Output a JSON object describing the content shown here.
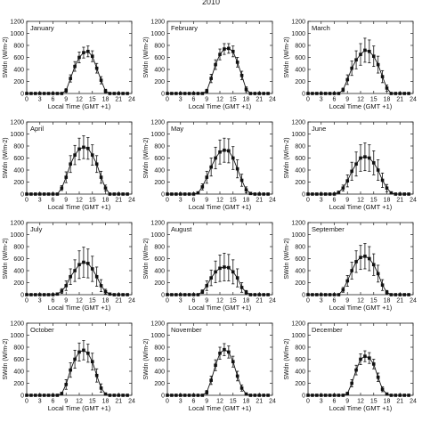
{
  "title": "2010",
  "chart_data": [
    {
      "type": "line",
      "title": "January",
      "xlabel": "Local Time (GMT +1)",
      "ylabel": "SWdn (W/m-2)",
      "xlim": [
        0,
        24
      ],
      "ylim": [
        0,
        1200
      ],
      "xticks": [
        "0",
        "3",
        "6",
        "9",
        "12",
        "15",
        "18",
        "21",
        "24"
      ],
      "yticks": [
        "0",
        "200",
        "400",
        "600",
        "800",
        "1000",
        "1200"
      ],
      "x": [
        0,
        1,
        2,
        3,
        4,
        5,
        6,
        7,
        8,
        9,
        10,
        11,
        12,
        13,
        14,
        15,
        16,
        17,
        18,
        19,
        20,
        21,
        22,
        23
      ],
      "values": [
        0,
        0,
        0,
        0,
        0,
        0,
        0,
        0,
        0,
        50,
        250,
        450,
        600,
        680,
        700,
        620,
        420,
        220,
        40,
        0,
        0,
        0,
        0,
        0
      ],
      "errors": [
        0,
        0,
        0,
        0,
        0,
        0,
        0,
        0,
        0,
        30,
        60,
        80,
        90,
        90,
        90,
        90,
        80,
        60,
        30,
        0,
        0,
        0,
        0,
        0
      ]
    },
    {
      "type": "line",
      "title": "February",
      "xlabel": "Local Time (GMT +1)",
      "ylabel": "SWdn (W/m-2)",
      "xlim": [
        0,
        24
      ],
      "ylim": [
        0,
        1200
      ],
      "xticks": [
        "0",
        "3",
        "6",
        "9",
        "12",
        "15",
        "18",
        "21",
        "24"
      ],
      "yticks": [
        "0",
        "200",
        "400",
        "600",
        "800",
        "1000",
        "1200"
      ],
      "x": [
        0,
        1,
        2,
        3,
        4,
        5,
        6,
        7,
        8,
        9,
        10,
        11,
        12,
        13,
        14,
        15,
        16,
        17,
        18,
        19,
        20,
        21,
        22,
        23
      ],
      "values": [
        0,
        0,
        0,
        0,
        0,
        0,
        0,
        0,
        0,
        40,
        250,
        480,
        650,
        740,
        750,
        700,
        520,
        300,
        70,
        0,
        0,
        0,
        0,
        0
      ],
      "errors": [
        0,
        0,
        0,
        0,
        0,
        0,
        0,
        0,
        0,
        30,
        70,
        80,
        90,
        90,
        80,
        90,
        80,
        70,
        40,
        0,
        0,
        0,
        0,
        0
      ]
    },
    {
      "type": "line",
      "title": "March",
      "xlabel": "Local Time (GMT +1)",
      "ylabel": "SWdn (W/m-2)",
      "xlim": [
        0,
        24
      ],
      "ylim": [
        0,
        1200
      ],
      "xticks": [
        "0",
        "3",
        "6",
        "9",
        "12",
        "15",
        "18",
        "21",
        "24"
      ],
      "yticks": [
        "0",
        "200",
        "400",
        "600",
        "800",
        "1000",
        "1200"
      ],
      "x": [
        0,
        1,
        2,
        3,
        4,
        5,
        6,
        7,
        8,
        9,
        10,
        11,
        12,
        13,
        14,
        15,
        16,
        17,
        18,
        19,
        20,
        21,
        22,
        23
      ],
      "values": [
        0,
        0,
        0,
        0,
        0,
        0,
        0,
        0,
        60,
        230,
        420,
        560,
        650,
        720,
        700,
        620,
        480,
        280,
        90,
        0,
        0,
        0,
        0,
        0
      ],
      "errors": [
        0,
        0,
        0,
        0,
        0,
        0,
        0,
        0,
        30,
        80,
        120,
        150,
        180,
        200,
        190,
        170,
        140,
        100,
        50,
        0,
        0,
        0,
        0,
        0
      ]
    },
    {
      "type": "line",
      "title": "April",
      "xlabel": "Local Time (GMT +1)",
      "ylabel": "SWdn (W/m-2)",
      "xlim": [
        0,
        24
      ],
      "ylim": [
        0,
        1200
      ],
      "xticks": [
        "0",
        "3",
        "6",
        "9",
        "12",
        "15",
        "18",
        "21",
        "24"
      ],
      "yticks": [
        "0",
        "200",
        "400",
        "600",
        "800",
        "1000",
        "1200"
      ],
      "x": [
        0,
        1,
        2,
        3,
        4,
        5,
        6,
        7,
        8,
        9,
        10,
        11,
        12,
        13,
        14,
        15,
        16,
        17,
        18,
        19,
        20,
        21,
        22,
        23
      ],
      "values": [
        0,
        0,
        0,
        0,
        0,
        0,
        0,
        0,
        100,
        280,
        500,
        650,
        750,
        780,
        760,
        650,
        500,
        280,
        100,
        0,
        0,
        0,
        0,
        0
      ],
      "errors": [
        0,
        0,
        0,
        0,
        0,
        0,
        0,
        0,
        40,
        90,
        140,
        160,
        180,
        190,
        180,
        170,
        140,
        100,
        50,
        0,
        0,
        0,
        0,
        0
      ]
    },
    {
      "type": "line",
      "title": "May",
      "xlabel": "Local Time (GMT +1)",
      "ylabel": "SWdn (W/m-2)",
      "xlim": [
        0,
        24
      ],
      "ylim": [
        0,
        1200
      ],
      "xticks": [
        "0",
        "3",
        "6",
        "9",
        "12",
        "15",
        "18",
        "21",
        "24"
      ],
      "yticks": [
        "0",
        "200",
        "400",
        "600",
        "800",
        "1000",
        "1200"
      ],
      "x": [
        0,
        1,
        2,
        3,
        4,
        5,
        6,
        7,
        8,
        9,
        10,
        11,
        12,
        13,
        14,
        15,
        16,
        17,
        18,
        19,
        20,
        21,
        22,
        23
      ],
      "values": [
        0,
        0,
        0,
        0,
        0,
        0,
        0,
        20,
        120,
        280,
        450,
        600,
        700,
        730,
        720,
        600,
        420,
        230,
        70,
        10,
        0,
        0,
        0,
        0
      ],
      "errors": [
        0,
        0,
        0,
        0,
        0,
        0,
        0,
        10,
        50,
        100,
        150,
        180,
        200,
        200,
        200,
        190,
        150,
        100,
        50,
        10,
        0,
        0,
        0,
        0
      ]
    },
    {
      "type": "line",
      "title": "June",
      "xlabel": "Local Time (GMT +1)",
      "ylabel": "SWdn (W/m-2)",
      "xlim": [
        0,
        24
      ],
      "ylim": [
        0,
        1200
      ],
      "xticks": [
        "0",
        "3",
        "6",
        "9",
        "12",
        "15",
        "18",
        "21",
        "24"
      ],
      "yticks": [
        "0",
        "200",
        "400",
        "600",
        "800",
        "1000",
        "1200"
      ],
      "x": [
        0,
        1,
        2,
        3,
        4,
        5,
        6,
        7,
        8,
        9,
        10,
        11,
        12,
        13,
        14,
        15,
        16,
        17,
        18,
        19,
        20,
        21,
        22,
        23
      ],
      "values": [
        0,
        0,
        0,
        0,
        0,
        0,
        0,
        30,
        100,
        220,
        380,
        500,
        600,
        620,
        600,
        520,
        400,
        230,
        100,
        20,
        0,
        0,
        0,
        0
      ],
      "errors": [
        0,
        0,
        0,
        0,
        0,
        0,
        0,
        15,
        50,
        100,
        150,
        200,
        220,
        230,
        220,
        200,
        170,
        120,
        60,
        15,
        0,
        0,
        0,
        0
      ]
    },
    {
      "type": "line",
      "title": "July",
      "xlabel": "Local Time (GMT +1)",
      "ylabel": "SWdn (W/m-2)",
      "xlim": [
        0,
        24
      ],
      "ylim": [
        0,
        1200
      ],
      "xticks": [
        "0",
        "3",
        "6",
        "9",
        "12",
        "15",
        "18",
        "21",
        "24"
      ],
      "yticks": [
        "0",
        "200",
        "400",
        "600",
        "800",
        "1000",
        "1200"
      ],
      "x": [
        0,
        1,
        2,
        3,
        4,
        5,
        6,
        7,
        8,
        9,
        10,
        11,
        12,
        13,
        14,
        15,
        16,
        17,
        18,
        19,
        20,
        21,
        22,
        23
      ],
      "values": [
        0,
        0,
        0,
        0,
        0,
        0,
        0,
        10,
        60,
        150,
        300,
        400,
        500,
        540,
        520,
        430,
        300,
        150,
        50,
        10,
        0,
        0,
        0,
        0
      ],
      "errors": [
        0,
        0,
        0,
        0,
        0,
        0,
        0,
        10,
        40,
        80,
        130,
        180,
        230,
        250,
        240,
        210,
        160,
        100,
        40,
        10,
        0,
        0,
        0,
        0
      ]
    },
    {
      "type": "line",
      "title": "August",
      "xlabel": "Local Time (GMT +1)",
      "ylabel": "SWdn (W/m-2)",
      "xlim": [
        0,
        24
      ],
      "ylim": [
        0,
        1200
      ],
      "xticks": [
        "0",
        "3",
        "6",
        "9",
        "12",
        "15",
        "18",
        "21",
        "24"
      ],
      "yticks": [
        "0",
        "200",
        "400",
        "600",
        "800",
        "1000",
        "1200"
      ],
      "x": [
        0,
        1,
        2,
        3,
        4,
        5,
        6,
        7,
        8,
        9,
        10,
        11,
        12,
        13,
        14,
        15,
        16,
        17,
        18,
        19,
        20,
        21,
        22,
        23
      ],
      "values": [
        0,
        0,
        0,
        0,
        0,
        0,
        0,
        0,
        50,
        150,
        280,
        380,
        440,
        460,
        450,
        380,
        280,
        120,
        40,
        0,
        0,
        0,
        0,
        0
      ],
      "errors": [
        0,
        0,
        0,
        0,
        0,
        0,
        0,
        0,
        30,
        80,
        130,
        180,
        220,
        230,
        220,
        200,
        150,
        80,
        30,
        0,
        0,
        0,
        0,
        0
      ]
    },
    {
      "type": "line",
      "title": "September",
      "xlabel": "Local Time (GMT +1)",
      "ylabel": "SWdn (W/m-2)",
      "xlim": [
        0,
        24
      ],
      "ylim": [
        0,
        1200
      ],
      "xticks": [
        "0",
        "3",
        "6",
        "9",
        "12",
        "15",
        "18",
        "21",
        "24"
      ],
      "yticks": [
        "0",
        "200",
        "400",
        "600",
        "800",
        "1000",
        "1200"
      ],
      "x": [
        0,
        1,
        2,
        3,
        4,
        5,
        6,
        7,
        8,
        9,
        10,
        11,
        12,
        13,
        14,
        15,
        16,
        17,
        18,
        19,
        20,
        21,
        22,
        23
      ],
      "values": [
        0,
        0,
        0,
        0,
        0,
        0,
        0,
        0,
        80,
        230,
        400,
        550,
        620,
        640,
        600,
        500,
        350,
        160,
        40,
        0,
        0,
        0,
        0,
        0
      ],
      "errors": [
        0,
        0,
        0,
        0,
        0,
        0,
        0,
        0,
        40,
        90,
        140,
        180,
        200,
        210,
        200,
        180,
        140,
        90,
        30,
        0,
        0,
        0,
        0,
        0
      ]
    },
    {
      "type": "line",
      "title": "October",
      "xlabel": "Local Time (GMT +1)",
      "ylabel": "SWdn (W/m-2)",
      "xlim": [
        0,
        24
      ],
      "ylim": [
        0,
        1200
      ],
      "xticks": [
        "0",
        "3",
        "6",
        "9",
        "12",
        "15",
        "18",
        "21",
        "24"
      ],
      "yticks": [
        "0",
        "200",
        "400",
        "600",
        "800",
        "1000",
        "1200"
      ],
      "x": [
        0,
        1,
        2,
        3,
        4,
        5,
        6,
        7,
        8,
        9,
        10,
        11,
        12,
        13,
        14,
        15,
        16,
        17,
        18,
        19,
        20,
        21,
        22,
        23
      ],
      "values": [
        0,
        0,
        0,
        0,
        0,
        0,
        0,
        0,
        30,
        180,
        420,
        600,
        720,
        750,
        700,
        560,
        330,
        120,
        20,
        0,
        0,
        0,
        0,
        0
      ],
      "errors": [
        0,
        0,
        0,
        0,
        0,
        0,
        0,
        0,
        20,
        80,
        120,
        150,
        150,
        160,
        150,
        140,
        110,
        70,
        20,
        0,
        0,
        0,
        0,
        0
      ]
    },
    {
      "type": "line",
      "title": "November",
      "xlabel": "Local Time (GMT +1)",
      "ylabel": "SWdn (W/m-2)",
      "xlim": [
        0,
        24
      ],
      "ylim": [
        0,
        1200
      ],
      "xticks": [
        "0",
        "3",
        "6",
        "9",
        "12",
        "15",
        "18",
        "21",
        "24"
      ],
      "yticks": [
        "0",
        "200",
        "400",
        "600",
        "800",
        "1000",
        "1200"
      ],
      "x": [
        0,
        1,
        2,
        3,
        4,
        5,
        6,
        7,
        8,
        9,
        10,
        11,
        12,
        13,
        14,
        15,
        16,
        17,
        18,
        19,
        20,
        21,
        22,
        23
      ],
      "values": [
        0,
        0,
        0,
        0,
        0,
        0,
        0,
        0,
        0,
        50,
        250,
        500,
        700,
        760,
        720,
        560,
        320,
        120,
        20,
        0,
        0,
        0,
        0,
        0
      ],
      "errors": [
        0,
        0,
        0,
        0,
        0,
        0,
        0,
        0,
        0,
        30,
        70,
        90,
        100,
        100,
        100,
        90,
        80,
        50,
        20,
        0,
        0,
        0,
        0,
        0
      ]
    },
    {
      "type": "line",
      "title": "December",
      "xlabel": "Local Time (GMT +1)",
      "ylabel": "SWdn (W/m-2)",
      "xlim": [
        0,
        24
      ],
      "ylim": [
        0,
        1200
      ],
      "xticks": [
        "0",
        "3",
        "6",
        "9",
        "12",
        "15",
        "18",
        "21",
        "24"
      ],
      "yticks": [
        "0",
        "200",
        "400",
        "600",
        "800",
        "1000",
        "1200"
      ],
      "x": [
        0,
        1,
        2,
        3,
        4,
        5,
        6,
        7,
        8,
        9,
        10,
        11,
        12,
        13,
        14,
        15,
        16,
        17,
        18,
        19,
        20,
        21,
        22,
        23
      ],
      "values": [
        0,
        0,
        0,
        0,
        0,
        0,
        0,
        0,
        0,
        30,
        200,
        420,
        600,
        650,
        620,
        520,
        300,
        100,
        20,
        0,
        0,
        0,
        0,
        0
      ],
      "errors": [
        0,
        0,
        0,
        0,
        0,
        0,
        0,
        0,
        0,
        20,
        60,
        80,
        90,
        90,
        90,
        80,
        70,
        40,
        20,
        0,
        0,
        0,
        0,
        0
      ]
    }
  ]
}
